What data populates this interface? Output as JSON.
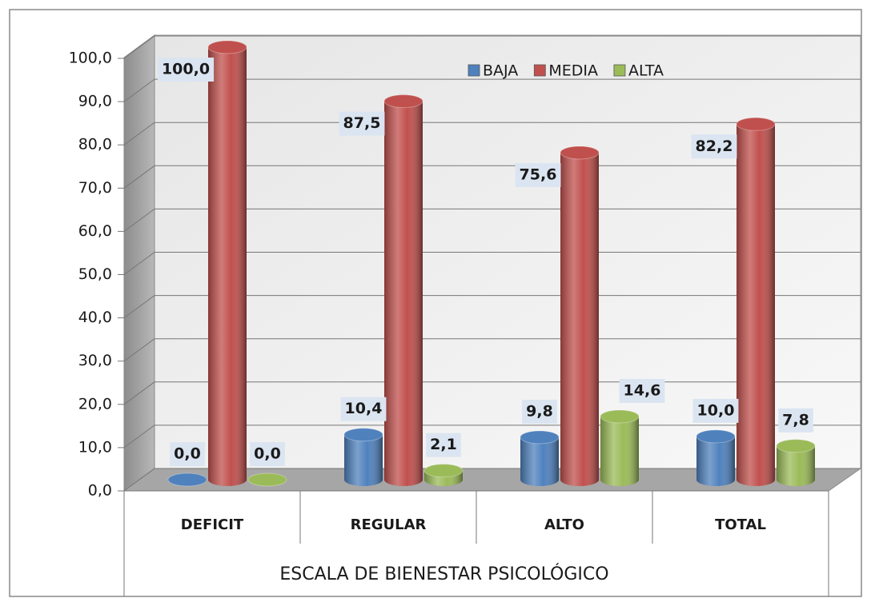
{
  "chart_data": {
    "type": "bar3d",
    "x_label": "ESCALA DE BIENESTAR PSICOLÓGICO",
    "categories": [
      "DEFICIT",
      "REGULAR",
      "ALTO",
      "TOTAL"
    ],
    "series": [
      {
        "name": "BAJA",
        "color": "#4f81bd",
        "values": [
          0,
          10.4,
          9.8,
          10.0
        ],
        "value_labels": [
          "0,0",
          "10,4",
          "9,8",
          "10,0"
        ]
      },
      {
        "name": "MEDIA",
        "color": "#c0504d",
        "values": [
          100,
          87.5,
          75.6,
          82.2
        ],
        "value_labels": [
          "100,0",
          "87,5",
          "75,6",
          "82,2"
        ]
      },
      {
        "name": "ALTA",
        "color": "#9bbb59",
        "values": [
          0,
          2.1,
          14.6,
          7.8
        ],
        "value_labels": [
          "0,0",
          "2,1",
          "14,6",
          "7,8"
        ]
      }
    ],
    "ylim": [
      0,
      100
    ],
    "yticks": [
      {
        "value": 0,
        "label": "0,0"
      },
      {
        "value": 10,
        "label": "10,0"
      },
      {
        "value": 20,
        "label": "20,0"
      },
      {
        "value": 30,
        "label": "30,0"
      },
      {
        "value": 40,
        "label": "40,0"
      },
      {
        "value": 50,
        "label": "50,0"
      },
      {
        "value": 60,
        "label": "60,0"
      },
      {
        "value": 70,
        "label": "70,0"
      },
      {
        "value": 80,
        "label": "80,0"
      },
      {
        "value": 90,
        "label": "90,0"
      },
      {
        "value": 100,
        "label": "100,0"
      }
    ],
    "grid": true,
    "legend": "top"
  }
}
